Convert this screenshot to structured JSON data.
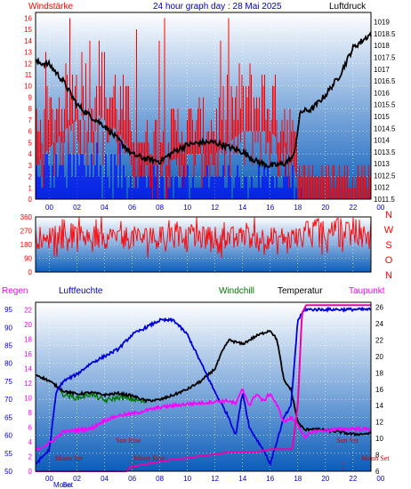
{
  "chart_data": [
    {
      "type": "line",
      "title": "24 hour graph day : 28 Mai 2025",
      "left_label": "Windstärke",
      "right_label": "Luftdruck",
      "x_ticks": [
        "00",
        "02",
        "04",
        "06",
        "08",
        "10",
        "12",
        "14",
        "16",
        "18",
        "20",
        "22",
        "00"
      ],
      "x_range_hours": [
        -1,
        23.3
      ],
      "y_left": {
        "min": 0,
        "max": 16.5,
        "ticks": [
          0,
          1,
          2,
          3,
          4,
          5,
          6,
          7,
          8,
          9,
          10,
          11,
          12,
          13,
          14,
          15,
          16
        ]
      },
      "y_right": {
        "min": 1011.5,
        "max": 1019.4,
        "ticks": [
          "1011.5",
          "1012",
          "1012.5",
          "1013",
          "1013.5",
          "1014",
          "1014.5",
          "1015",
          "1015.5",
          "1016",
          "1016.5",
          "1017",
          "1017.5",
          "1018",
          "1018.5",
          "1019"
        ]
      },
      "colors": {
        "gust": "#ff0000",
        "wind": "#0000ff",
        "pressure": "#000000"
      },
      "series": [
        {
          "key": "pressure",
          "x": [
            -1.0,
            0,
            1,
            2,
            3,
            4,
            5,
            6,
            7,
            8,
            9,
            10,
            11,
            12,
            13,
            14,
            15,
            16,
            17,
            17.7,
            18.2,
            19,
            20,
            21,
            22,
            23.3
          ],
          "y": [
            1017.3,
            1017.2,
            1016.5,
            1015.5,
            1015.0,
            1014.6,
            1014.0,
            1013.4,
            1013.2,
            1013.1,
            1013.5,
            1013.8,
            1013.9,
            1013.9,
            1013.7,
            1013.5,
            1013.1,
            1012.9,
            1013.0,
            1013.3,
            1015.2,
            1015.3,
            1015.9,
            1016.7,
            1017.9,
            1018.5
          ]
        }
      ],
      "gust_envelope": {
        "x": [
          -1.0,
          1,
          3,
          5,
          6,
          7,
          8,
          10,
          12,
          14,
          16,
          17.5,
          18.3,
          19,
          20,
          21,
          22,
          23.3
        ],
        "y": [
          5,
          8,
          10,
          8,
          6,
          5,
          5,
          6,
          6,
          8,
          8,
          6,
          2,
          2,
          2,
          2,
          2,
          2
        ]
      },
      "wind_envelope": {
        "x": [
          -1.0,
          2,
          4,
          6,
          8,
          10,
          12,
          14,
          16,
          17.5,
          18.3,
          23.3
        ],
        "y": [
          3,
          3,
          4,
          3,
          2,
          2,
          2,
          2,
          2,
          2,
          0,
          0
        ]
      }
    },
    {
      "type": "scatter",
      "left_label": "",
      "right_labels": [
        "N",
        "W",
        "S",
        "O",
        "N"
      ],
      "x_ticks": [
        "00",
        "02",
        "04",
        "06",
        "08",
        "10",
        "12",
        "14",
        "16",
        "18",
        "20",
        "22",
        "00"
      ],
      "y_range": [
        0,
        360
      ],
      "y_ticks": [
        0,
        90,
        180,
        270,
        360
      ],
      "colors": {
        "direction": "#ff0000"
      },
      "direction_band": {
        "low": 90,
        "high": 360,
        "typical": [
          150,
          300
        ]
      }
    },
    {
      "type": "line",
      "legend": [
        "Regen",
        "Luftfeuchte",
        "Windchill",
        "Temperatur",
        "Taupunkt"
      ],
      "legend_colors": [
        "#ff00ff",
        "#0000cc",
        "#007700",
        "#000000",
        "#ff00ff"
      ],
      "y_left_humidity": {
        "min": 50,
        "max": 97,
        "ticks": [
          50,
          55,
          60,
          65,
          70,
          75,
          80,
          85,
          90,
          95
        ]
      },
      "y_left_rain": {
        "min": 0,
        "max": 23,
        "ticks": [
          0,
          2,
          4,
          6,
          8,
          10,
          12,
          14,
          16,
          18,
          20,
          22
        ]
      },
      "y_right_temp": {
        "min": 6,
        "max": 26.6,
        "ticks": [
          6,
          8,
          10,
          12,
          14,
          16,
          18,
          20,
          22,
          24,
          26
        ]
      },
      "x_ticks": [
        "00",
        "02",
        "04",
        "06",
        "08",
        "10",
        "12",
        "14",
        "16",
        "18",
        "20",
        "22",
        "00"
      ],
      "bottom_x_labels": [
        "Moon",
        "Set"
      ],
      "annotations": [
        {
          "text": "Sun Rise",
          "hour": 4.8
        },
        {
          "text": "Sun Set",
          "hour": 20.8
        },
        {
          "text": "Moon Set",
          "hour": 0.4
        },
        {
          "text": "Moon Rise",
          "hour": 6.1
        },
        {
          "text": "Moon Set",
          "hour": 22.6
        }
      ],
      "series": [
        {
          "key": "humidity",
          "x": [
            -1.0,
            0,
            0.5,
            1,
            2,
            3,
            4,
            5,
            6,
            7,
            8,
            9,
            10,
            11,
            12,
            13,
            13.5,
            14,
            14.5,
            15,
            15.5,
            16,
            17,
            17.5,
            18,
            18.5,
            23.3
          ],
          "y": [
            52,
            56,
            72,
            75,
            77,
            80,
            82,
            84,
            88,
            90,
            92,
            92,
            88,
            80,
            72,
            65,
            60,
            72,
            62,
            59,
            56,
            52,
            65,
            68,
            92,
            95,
            95
          ]
        },
        {
          "key": "temperature",
          "x": [
            -1.0,
            0,
            1,
            2,
            3,
            4,
            5,
            6,
            7,
            8,
            9,
            10,
            11,
            12,
            12.5,
            13,
            14,
            15,
            16,
            16.5,
            17,
            17.5,
            18,
            18.5,
            19,
            20,
            21,
            22,
            23.3
          ],
          "y": [
            17.8,
            17.0,
            15.8,
            15.4,
            15.6,
            15.3,
            15.5,
            15.2,
            14.6,
            14.7,
            15.3,
            16.0,
            17.0,
            18.5,
            20.5,
            22.0,
            21.5,
            22.5,
            23.2,
            22.0,
            17.0,
            16.0,
            12.0,
            11.0,
            11.2,
            11.0,
            10.8,
            10.5,
            10.6
          ]
        },
        {
          "key": "windchill",
          "x": [
            0.8,
            2,
            3,
            4,
            5,
            6,
            7
          ],
          "y": [
            15.5,
            14.9,
            15.4,
            14.6,
            15.0,
            14.8,
            14.4
          ]
        },
        {
          "key": "dewpoint",
          "x": [
            -1.0,
            0,
            1,
            2,
            3,
            4,
            5,
            6,
            7,
            8,
            9,
            10,
            11,
            12,
            13,
            13.5,
            14,
            14.5,
            15,
            15.5,
            16,
            16.5,
            17,
            17.5,
            18,
            18.5,
            19,
            20,
            21,
            22,
            23.3
          ],
          "y": [
            8.6,
            9.4,
            10.8,
            11.0,
            11.2,
            12.2,
            12.8,
            13.0,
            13.4,
            13.8,
            14.0,
            14.2,
            14.3,
            14.5,
            14.6,
            14.2,
            16.0,
            14.0,
            15.5,
            14.5,
            15.5,
            14.0,
            12.0,
            12.5,
            11.8,
            10.0,
            10.8,
            11.0,
            11.1,
            11.2,
            11.1
          ]
        },
        {
          "key": "rain",
          "x": [
            -1.0,
            5.6,
            5.9,
            8,
            9,
            10,
            11,
            12,
            13,
            14,
            15,
            16,
            17,
            17.6,
            18.0,
            18.3,
            18.6,
            19,
            23.3
          ],
          "y": [
            0,
            0,
            0.6,
            1.3,
            1.6,
            1.8,
            2.1,
            2.3,
            2.6,
            2.6,
            2.6,
            3.0,
            3.0,
            3.0,
            9,
            21.5,
            22.6,
            22.6,
            22.6
          ]
        }
      ]
    }
  ],
  "colors": {
    "panel_top": "#ffffff",
    "panel_bottom": "#0b5dbb",
    "axis_text": "#0000cc",
    "header_red": "#ff0000"
  }
}
